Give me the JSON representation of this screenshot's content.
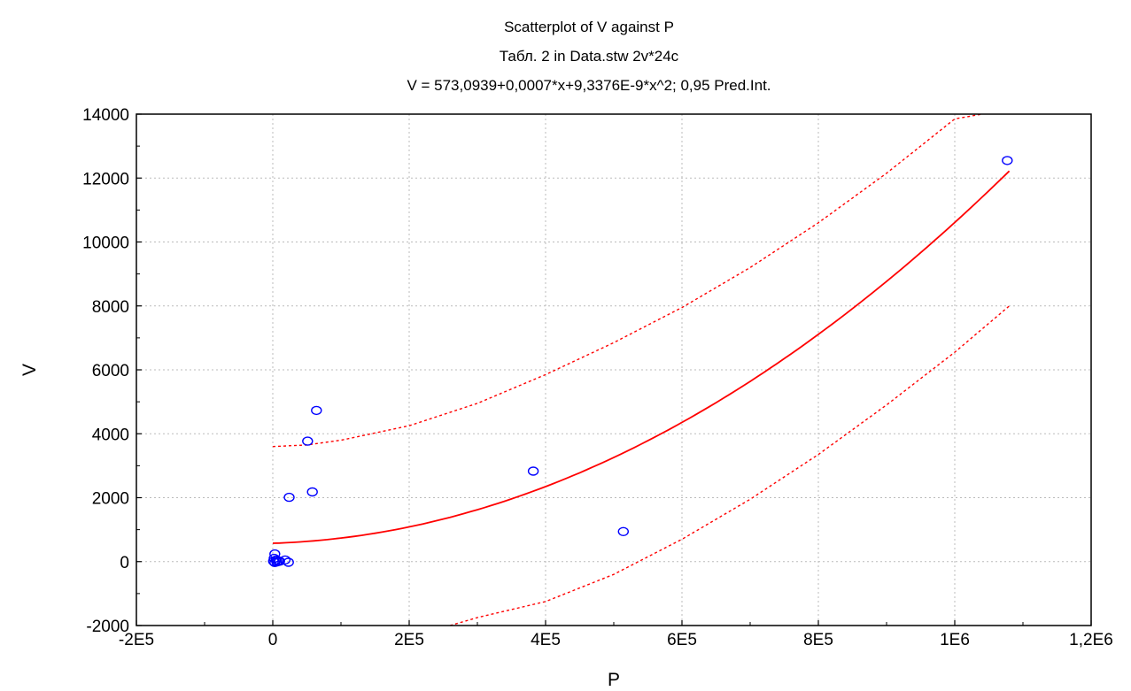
{
  "chart_data": {
    "type": "scatter",
    "title": "Scatterplot of V against P",
    "subtitle": "Табл. 2 in Data.stw 2v*24c",
    "equation": "V = 573,0939+0,0007*x+9,3376E-9*x^2; 0,95 Pred.Int.",
    "xlabel": "P",
    "ylabel": "V",
    "xlim": [
      -200000,
      1200000
    ],
    "ylim": [
      -2000,
      14000
    ],
    "x_ticks": [
      -200000,
      0,
      200000,
      400000,
      600000,
      800000,
      1000000,
      1200000
    ],
    "x_tick_labels": [
      "-2E5",
      "0",
      "2E5",
      "4E5",
      "6E5",
      "8E5",
      "1E6",
      "1,2E6"
    ],
    "y_ticks": [
      -2000,
      0,
      2000,
      4000,
      6000,
      8000,
      10000,
      12000,
      14000
    ],
    "y_tick_labels": [
      "-2000",
      "0",
      "2000",
      "4000",
      "6000",
      "8000",
      "10000",
      "12000",
      "14000"
    ],
    "grid": true,
    "colors": {
      "points": "#0000ff",
      "fit": "#ff0000",
      "interval": "#ff0000",
      "grid": "#bbbbbb"
    },
    "points": [
      {
        "x": 1077000,
        "y": 12550
      },
      {
        "x": 64000,
        "y": 4730
      },
      {
        "x": 51000,
        "y": 3770
      },
      {
        "x": 382000,
        "y": 2830
      },
      {
        "x": 58000,
        "y": 2180
      },
      {
        "x": 24000,
        "y": 2010
      },
      {
        "x": 514000,
        "y": 940
      },
      {
        "x": 3000,
        "y": 240
      },
      {
        "x": 2000,
        "y": 100
      },
      {
        "x": 5000,
        "y": 50
      },
      {
        "x": 1000,
        "y": 10
      },
      {
        "x": 8000,
        "y": 20
      },
      {
        "x": 3000,
        "y": -30
      },
      {
        "x": 10000,
        "y": 10
      },
      {
        "x": 18000,
        "y": 50
      },
      {
        "x": 23000,
        "y": -20
      },
      {
        "x": 6000,
        "y": -10
      }
    ],
    "fit": {
      "name": "",
      "coefficients": [
        573.0939,
        0.0007,
        9.3376e-09
      ],
      "x_range": [
        0,
        1080000
      ]
    },
    "prediction_interval": {
      "upper": [
        [
          0,
          3600
        ],
        [
          50000,
          3650
        ],
        [
          100000,
          3800
        ],
        [
          200000,
          4250
        ],
        [
          300000,
          4950
        ],
        [
          400000,
          5850
        ],
        [
          500000,
          6850
        ],
        [
          600000,
          7950
        ],
        [
          700000,
          9200
        ],
        [
          800000,
          10600
        ],
        [
          900000,
          12150
        ],
        [
          1000000,
          13850
        ],
        [
          1040000,
          14000
        ]
      ],
      "lower": [
        [
          260000,
          -2000
        ],
        [
          300000,
          -1750
        ],
        [
          400000,
          -1250
        ],
        [
          500000,
          -400
        ],
        [
          600000,
          700
        ],
        [
          700000,
          1950
        ],
        [
          800000,
          3350
        ],
        [
          900000,
          4900
        ],
        [
          1000000,
          6550
        ],
        [
          1080000,
          8000
        ]
      ]
    }
  }
}
